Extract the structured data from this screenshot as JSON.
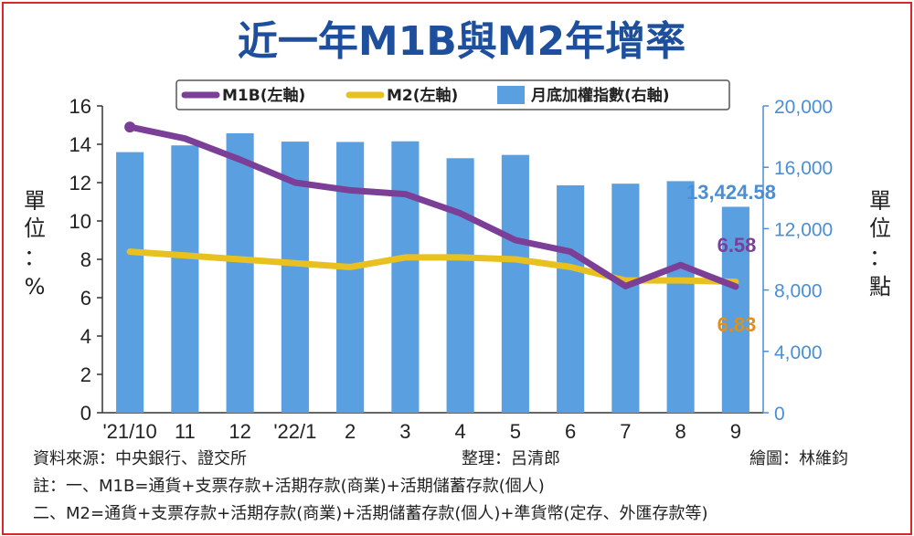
{
  "chart_data": {
    "type": "bar+line",
    "title": "近一年M1B與M2年增率",
    "categories": [
      "'21/10",
      "11",
      "12",
      "'22/1",
      "2",
      "3",
      "4",
      "5",
      "6",
      "7",
      "8",
      "9"
    ],
    "legend": {
      "m1b": "M1B(左軸)",
      "m2": "M2(左軸)",
      "index": "月底加權指數(右軸)"
    },
    "series": [
      {
        "name": "M1B(左軸)",
        "axis": "left",
        "type": "line",
        "color": "#7b3f98",
        "values": [
          14.9,
          14.3,
          13.2,
          12.0,
          11.6,
          11.4,
          10.4,
          9.0,
          8.4,
          6.6,
          7.7,
          6.58
        ]
      },
      {
        "name": "M2(左軸)",
        "axis": "left",
        "type": "line",
        "color": "#e8c020",
        "values": [
          8.4,
          8.2,
          8.0,
          7.8,
          7.6,
          8.1,
          8.1,
          8.0,
          7.6,
          6.9,
          6.9,
          6.83
        ]
      },
      {
        "name": "月底加權指數(右軸)",
        "axis": "right",
        "type": "bar",
        "color": "#5aa0e0",
        "values": [
          16988,
          17428,
          18218,
          17674,
          17652,
          17693,
          16592,
          16807,
          14826,
          14930,
          15096,
          13424.58
        ]
      }
    ],
    "ylabel_left": [
      "單",
      "位",
      "：",
      "%"
    ],
    "ylabel_right": [
      "單",
      "位",
      "：",
      "點"
    ],
    "ylim_left": [
      0,
      16
    ],
    "ylim_right": [
      0,
      20000
    ],
    "yticks_left": [
      "0",
      "2",
      "4",
      "6",
      "8",
      "10",
      "12",
      "14",
      "16"
    ],
    "yticks_right": [
      "0",
      "4,000",
      "8,000",
      "12,000",
      "16,000",
      "20,000"
    ],
    "annotations": {
      "index_last": "13,424.58",
      "m1b_last": "6.58",
      "m2_last": "6.83"
    },
    "legend_position": "top"
  },
  "footer": {
    "source": "資料來源：中央銀行、證交所",
    "compiler": "整理：呂清郎",
    "artist": "繪圖：林維鈞",
    "note1": "註：一、M1B=通貨+支票存款+活期存款(商業)+活期儲蓄存款(個人)",
    "note2": "二、M2=通貨+支票存款+活期存款(商業)+活期儲蓄存款(個人)+準貨幣(定存、外匯存款等)"
  },
  "colors": {
    "border": "#d8262b",
    "title": "#1d4f9c",
    "bar": "#5aa0e0",
    "m1b": "#7b3f98",
    "m2": "#e8c020"
  }
}
